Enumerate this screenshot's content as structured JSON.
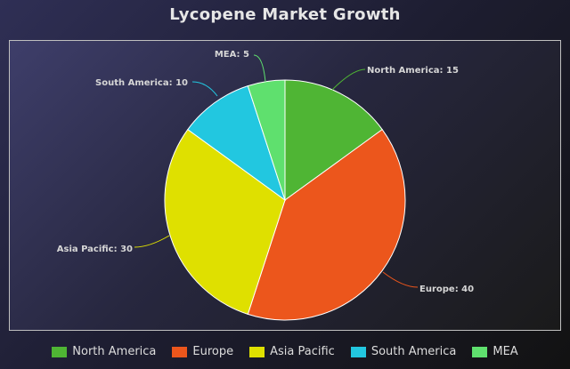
{
  "chart_data": {
    "type": "pie",
    "title": "Lycopene Market Growth",
    "categories": [
      "North America",
      "Europe",
      "Asia Pacific",
      "South America",
      "MEA"
    ],
    "values": [
      15,
      40,
      30,
      10,
      5
    ],
    "data_labels": [
      "North America: 15",
      "Europe: 40",
      "Asia Pacific: 30",
      "South America: 10",
      "MEA: 5"
    ],
    "colors": [
      "#4fb534",
      "#ec561c",
      "#dfe000",
      "#22c7e0",
      "#5fe06e"
    ],
    "legend_position": "bottom"
  }
}
